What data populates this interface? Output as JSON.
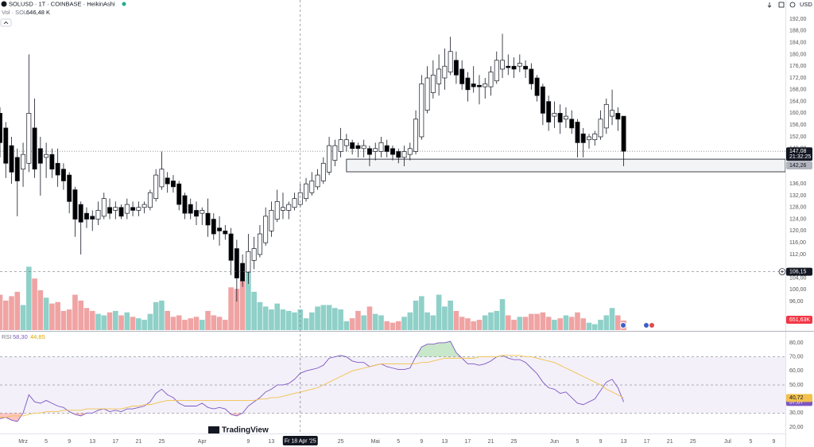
{
  "header": {
    "symbol": "SOLUSD · 1T · COINBASE · HeikinAshi",
    "vol_label": "Vol · SOL",
    "vol_value": "646,48 K",
    "currency": "USD",
    "rsi_label": "RSI",
    "rsi_value": "58,30",
    "rsi_ma_value": "44,85",
    "logo": "TradingView"
  },
  "chart_data": [
    {
      "type": "candlestick",
      "x": [
        "2025-02-25",
        "2025-02-26",
        "2025-02-27",
        "2025-02-28",
        "2025-03-01",
        "2025-03-02",
        "2025-03-03",
        "2025-03-04",
        "2025-03-05",
        "2025-03-06",
        "2025-03-07",
        "2025-03-08",
        "2025-03-09",
        "2025-03-10",
        "2025-03-11",
        "2025-03-12",
        "2025-03-13",
        "2025-03-14",
        "2025-03-15",
        "2025-03-16",
        "2025-03-17",
        "2025-03-18",
        "2025-03-19",
        "2025-03-20",
        "2025-03-21",
        "2025-03-22",
        "2025-03-23",
        "2025-03-24",
        "2025-03-25",
        "2025-03-26",
        "2025-03-27",
        "2025-03-28",
        "2025-03-29",
        "2025-03-30",
        "2025-03-31",
        "2025-04-01",
        "2025-04-02",
        "2025-04-03",
        "2025-04-04",
        "2025-04-05",
        "2025-04-06",
        "2025-04-07",
        "2025-04-08",
        "2025-04-09",
        "2025-04-10",
        "2025-04-11",
        "2025-04-12",
        "2025-04-13",
        "2025-04-14",
        "2025-04-15",
        "2025-04-16",
        "2025-04-17",
        "2025-04-18",
        "2025-04-19",
        "2025-04-20",
        "2025-04-21",
        "2025-04-22",
        "2025-04-23",
        "2025-04-24",
        "2025-04-25",
        "2025-04-26",
        "2025-04-27",
        "2025-04-28",
        "2025-04-29",
        "2025-04-30",
        "2025-05-01",
        "2025-05-02",
        "2025-05-03",
        "2025-05-04",
        "2025-05-05",
        "2025-05-06",
        "2025-05-07",
        "2025-05-08",
        "2025-05-09",
        "2025-05-10",
        "2025-05-11",
        "2025-05-12",
        "2025-05-13",
        "2025-05-14",
        "2025-05-15",
        "2025-05-16",
        "2025-05-17",
        "2025-05-18",
        "2025-05-19",
        "2025-05-20",
        "2025-05-21",
        "2025-05-22",
        "2025-05-23",
        "2025-05-24",
        "2025-05-25",
        "2025-05-26",
        "2025-05-27",
        "2025-05-28",
        "2025-05-29",
        "2025-05-30",
        "2025-05-31",
        "2025-06-01",
        "2025-06-02",
        "2025-06-03",
        "2025-06-04",
        "2025-06-05",
        "2025-06-06",
        "2025-06-07",
        "2025-06-08",
        "2025-06-09",
        "2025-06-10",
        "2025-06-11",
        "2025-06-12",
        "2025-06-13"
      ],
      "open": [
        160,
        155,
        149,
        145,
        141,
        143,
        155,
        148,
        145,
        146,
        143,
        141,
        139,
        134,
        129,
        126,
        125,
        124,
        125,
        128,
        127,
        128,
        126,
        128,
        127,
        128,
        128,
        131,
        135,
        138,
        137,
        136,
        132,
        129,
        127,
        126,
        126,
        124,
        121,
        120,
        119,
        114,
        109,
        106,
        110,
        112,
        116,
        120,
        124,
        127,
        127,
        128,
        129,
        131,
        133,
        135,
        137,
        140,
        144,
        147,
        149,
        150,
        149,
        148,
        148,
        147,
        147,
        149,
        148,
        147,
        145,
        146,
        147,
        152,
        161,
        167,
        170,
        172,
        174,
        178,
        175,
        172,
        170,
        169.5,
        169,
        169,
        171,
        175,
        176,
        176,
        176,
        176,
        175,
        172,
        169,
        164,
        159,
        160,
        158,
        158,
        157,
        153,
        151,
        151,
        152,
        155,
        159,
        160,
        159
      ],
      "high": [
        162,
        157,
        152,
        148,
        150,
        180,
        165,
        152,
        150,
        148,
        148,
        143,
        140,
        135,
        130,
        128,
        127,
        130,
        133,
        131,
        130,
        129,
        131,
        130,
        130,
        130,
        134,
        141,
        147,
        140,
        139,
        137,
        133,
        131,
        130,
        128,
        131,
        126,
        125,
        122,
        121,
        117,
        112,
        119,
        118,
        122,
        128,
        130,
        134,
        133,
        130,
        133,
        136,
        138,
        140,
        141,
        145,
        152,
        151,
        155,
        153,
        151,
        150,
        151,
        149,
        150,
        152,
        151,
        149,
        148,
        149,
        150,
        161,
        173,
        176,
        178,
        180,
        182,
        186,
        181,
        178,
        174,
        176,
        173,
        172,
        176,
        181,
        187,
        180,
        179,
        180,
        178,
        177,
        173,
        170,
        166,
        164,
        163,
        162,
        161,
        158,
        155,
        153,
        154,
        161,
        165,
        168,
        162,
        159
      ],
      "low": [
        145,
        138,
        136,
        125,
        135,
        140,
        138,
        132,
        138,
        138,
        135,
        134,
        126,
        118,
        112,
        121,
        120,
        122,
        124,
        124,
        124,
        124,
        124,
        125,
        125,
        126,
        127,
        130,
        134,
        133,
        133,
        127,
        124,
        124,
        122,
        122,
        118,
        117,
        115,
        117,
        105,
        96,
        101,
        102,
        107,
        111,
        115,
        118,
        123,
        124,
        124,
        127,
        128,
        130,
        132,
        134,
        136,
        139,
        142,
        145,
        147,
        146,
        145,
        145,
        142,
        144,
        145,
        145,
        144,
        143,
        142,
        144,
        146,
        151,
        160,
        165,
        166,
        168,
        173,
        170,
        168,
        164,
        167,
        163,
        165,
        166,
        170,
        172,
        173,
        172,
        174,
        172,
        168,
        164,
        156,
        154,
        155,
        153,
        155,
        153,
        145,
        145,
        148,
        149,
        151,
        153,
        156,
        154,
        142
      ],
      "close": [
        150,
        143,
        140,
        137,
        146,
        160,
        141,
        143,
        146,
        141,
        139,
        137,
        130,
        124,
        123,
        124,
        124,
        127,
        131,
        126,
        128,
        125,
        129,
        127,
        128,
        129,
        133,
        139,
        141,
        136,
        135,
        129,
        126,
        126,
        125,
        127,
        122,
        119,
        120,
        119,
        110,
        104,
        103,
        113,
        114,
        119,
        125,
        127,
        130,
        128,
        129,
        131,
        133,
        136,
        137,
        139,
        143,
        149,
        149,
        151,
        151,
        148,
        148,
        149,
        146,
        148,
        150,
        147,
        146,
        145,
        147,
        148,
        158,
        170,
        172,
        173,
        175,
        176,
        181,
        173,
        170,
        168,
        169,
        169,
        170,
        174,
        178,
        178,
        175.5,
        175,
        177,
        175,
        170,
        166,
        160,
        157,
        160,
        157,
        159,
        155,
        150,
        150,
        152,
        153,
        158,
        163,
        161,
        158,
        147.08
      ],
      "up_color": "#ffffff",
      "down_color": "#000000",
      "border_color": "#131722",
      "xlim": [
        "2025-02-25",
        "2025-07-11"
      ],
      "xticks": [
        {
          "value": "2025-03-01",
          "label": "Mrz"
        },
        {
          "value": "2025-03-05",
          "label": "5"
        },
        {
          "value": "2025-03-09",
          "label": "9"
        },
        {
          "value": "2025-03-13",
          "label": "13"
        },
        {
          "value": "2025-03-17",
          "label": "17"
        },
        {
          "value": "2025-03-21",
          "label": "21"
        },
        {
          "value": "2025-03-25",
          "label": "25"
        },
        {
          "value": "2025-04-01",
          "label": "Apr"
        },
        {
          "value": "2025-04-09",
          "label": "9"
        },
        {
          "value": "2025-04-13",
          "label": "13"
        },
        {
          "value": "2025-04-25",
          "label": "25"
        },
        {
          "value": "2025-05-01",
          "label": "Mai"
        },
        {
          "value": "2025-05-05",
          "label": "5"
        },
        {
          "value": "2025-05-09",
          "label": "9"
        },
        {
          "value": "2025-05-13",
          "label": "13"
        },
        {
          "value": "2025-05-17",
          "label": "17"
        },
        {
          "value": "2025-05-21",
          "label": "21"
        },
        {
          "value": "2025-05-25",
          "label": "25"
        },
        {
          "value": "2025-06-01",
          "label": "Jun"
        },
        {
          "value": "2025-06-05",
          "label": "5"
        },
        {
          "value": "2025-06-09",
          "label": "9"
        },
        {
          "value": "2025-06-13",
          "label": "13"
        },
        {
          "value": "2025-06-17",
          "label": "17"
        },
        {
          "value": "2025-06-21",
          "label": "21"
        },
        {
          "value": "2025-06-25",
          "label": "25"
        },
        {
          "value": "2025-07-01",
          "label": "Jul"
        },
        {
          "value": "2025-07-05",
          "label": "5"
        },
        {
          "value": "2025-07-09",
          "label": "9"
        }
      ],
      "ylim": [
        86.3,
        198.5
      ],
      "yticks": [
        {
          "value": 192,
          "label": "192,00"
        },
        {
          "value": 188,
          "label": "188,00"
        },
        {
          "value": 184,
          "label": "184,00"
        },
        {
          "value": 180,
          "label": "180,00"
        },
        {
          "value": 176,
          "label": "176,00"
        },
        {
          "value": 172,
          "label": "172,00"
        },
        {
          "value": 168,
          "label": "168,00"
        },
        {
          "value": 164,
          "label": "164,00"
        },
        {
          "value": 160,
          "label": "160,00"
        },
        {
          "value": 156,
          "label": "156,00"
        },
        {
          "value": 152,
          "label": "152,00"
        },
        {
          "value": 148,
          "label": "148,00"
        },
        {
          "value": 136,
          "label": "136,00"
        },
        {
          "value": 132,
          "label": "132,00"
        },
        {
          "value": 128,
          "label": "128,00"
        },
        {
          "value": 124,
          "label": "124,00"
        },
        {
          "value": 120,
          "label": "120,00"
        },
        {
          "value": 116,
          "label": "116,00"
        },
        {
          "value": 112,
          "label": "112,00"
        },
        {
          "value": 104,
          "label": "104,00"
        },
        {
          "value": 100,
          "label": "100,00"
        },
        {
          "value": 96,
          "label": "96,00"
        }
      ],
      "last_price": {
        "value": 147.08,
        "label": "147,08",
        "countdown": "21:32:25"
      },
      "zone": {
        "start": "2025-04-26",
        "top": 144.4,
        "bottom": 140.1,
        "value": 142.26,
        "label": "142,26"
      },
      "crosshair": {
        "x": "2025-04-18",
        "x_label": "Fr 18 Apr '25",
        "y": 106.15,
        "y_label": "106,15"
      }
    },
    {
      "type": "bar",
      "values": [
        2400,
        2000,
        2300,
        2600,
        1700,
        4300,
        3500,
        2700,
        2200,
        1800,
        1900,
        1300,
        1400,
        2400,
        2000,
        1500,
        1300,
        1100,
        1000,
        1200,
        1300,
        1000,
        1200,
        900,
        800,
        700,
        1100,
        1900,
        2000,
        1300,
        900,
        1000,
        700,
        800,
        900,
        700,
        1300,
        1000,
        900,
        700,
        2900,
        2800,
        3400,
        4000,
        2600,
        1900,
        1600,
        1400,
        1800,
        1400,
        1300,
        1200,
        1400,
        800,
        1200,
        1600,
        1700,
        1700,
        1500,
        1400,
        600,
        800,
        1300,
        1000,
        1600,
        1100,
        1000,
        600,
        500,
        600,
        900,
        1200,
        2000,
        2300,
        1200,
        1000,
        2400,
        1600,
        2000,
        1300,
        900,
        800,
        600,
        700,
        1000,
        1200,
        1300,
        2100,
        1000,
        700,
        900,
        900,
        1100,
        1100,
        1200,
        900,
        700,
        800,
        1000,
        900,
        1200,
        800,
        500,
        400,
        700,
        1000,
        1500,
        1000,
        651.63
      ],
      "last_label": "651,63K",
      "up_color": "#8fd0c8",
      "down_color": "#f0a3a3",
      "ylim": [
        0,
        22400
      ]
    },
    {
      "type": "line",
      "series": [
        {
          "color": "#7e57c2",
          "last_label": "37,87",
          "values": [
            26,
            27,
            25,
            24,
            30,
            43,
            38,
            37,
            39,
            37,
            35,
            34,
            31,
            29,
            28,
            30,
            30,
            32,
            33,
            31,
            32,
            31,
            33,
            33,
            34,
            35,
            38,
            44,
            47,
            43,
            41,
            37,
            35,
            35,
            35,
            37,
            34,
            33,
            34,
            33,
            29,
            28,
            30,
            35,
            38,
            41,
            45,
            47,
            50,
            50,
            51,
            54,
            58.3,
            60,
            61,
            62,
            64,
            69,
            70,
            71,
            70,
            67,
            66,
            66,
            63,
            64,
            65,
            63,
            62,
            61,
            61,
            62,
            70,
            77,
            79,
            79,
            80,
            80,
            81,
            73,
            69,
            65,
            65,
            64,
            65,
            67,
            70,
            71,
            69,
            68,
            68,
            66,
            62,
            58,
            52,
            48,
            47,
            44,
            45,
            41,
            37,
            36,
            38,
            40,
            46,
            52,
            54,
            48,
            37.87
          ]
        },
        {
          "color": "#f2c14e",
          "last_label": "40,72",
          "values": [
            27,
            27,
            28,
            28,
            28,
            29,
            30,
            30,
            31,
            31,
            31,
            32,
            32,
            32,
            32,
            33,
            33,
            33,
            33,
            33,
            33,
            33,
            34,
            35,
            35,
            36,
            36,
            37,
            38,
            39,
            39,
            39,
            39,
            39,
            39,
            39,
            39,
            39,
            39,
            39,
            39,
            39,
            39,
            39,
            39,
            40,
            40,
            41,
            41,
            42,
            43,
            44,
            44.85,
            46,
            47,
            48,
            50,
            52,
            54,
            56,
            58,
            60,
            61,
            62,
            63,
            64,
            65,
            65,
            65,
            65,
            65,
            65,
            65,
            66,
            66,
            67,
            68,
            69,
            69,
            69,
            69,
            69,
            69,
            70,
            70,
            70,
            70,
            71,
            71,
            71,
            71,
            70,
            70,
            69,
            68,
            67,
            66,
            64,
            62,
            60,
            58,
            56,
            54,
            52,
            50,
            47,
            45,
            43,
            40.72
          ]
        }
      ],
      "ylim": [
        15.5,
        87.3
      ],
      "yticks": [
        {
          "value": 80,
          "label": "80,00"
        },
        {
          "value": 70,
          "label": "70,00"
        },
        {
          "value": 60,
          "label": "60,00"
        },
        {
          "value": 50,
          "label": "50,00"
        },
        {
          "value": 40,
          "label": "40,00"
        },
        {
          "value": 30,
          "label": "30,00"
        },
        {
          "value": 20,
          "label": "20,00"
        }
      ],
      "levels": [
        70,
        50,
        30
      ],
      "band_color": "#7e57c2",
      "overbought_color": "#4caf50",
      "oversold_color": "#f44336"
    }
  ]
}
